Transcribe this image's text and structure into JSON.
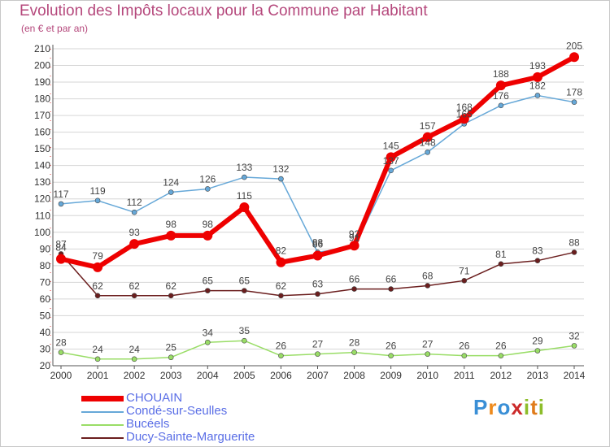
{
  "chart_data": {
    "type": "line",
    "title": "Evolution des Impôts locaux pour la Commune par Habitant",
    "subtitle": "(en € et par an)",
    "xlabel": "",
    "ylabel": "",
    "ylim": [
      20,
      210
    ],
    "y_ticks": [
      20,
      30,
      40,
      50,
      60,
      70,
      80,
      90,
      100,
      110,
      120,
      130,
      140,
      150,
      160,
      170,
      180,
      190,
      200,
      210
    ],
    "x": [
      "2000",
      "2001",
      "2002",
      "2003",
      "2004",
      "2005",
      "2006",
      "2007",
      "2008",
      "2009",
      "2010",
      "2011",
      "2012",
      "2013",
      "2014"
    ],
    "grid": "horizontal",
    "legend_position": "bottom-left",
    "series": [
      {
        "name": "Ducy-Sainte-Marguerite",
        "color": "#6b1e1e",
        "values": [
          87,
          62,
          62,
          62,
          65,
          65,
          62,
          63,
          66,
          66,
          68,
          71,
          81,
          83,
          88
        ]
      },
      {
        "name": "Bucéels",
        "color": "#99dd66",
        "values": [
          28,
          24,
          24,
          25,
          34,
          35,
          26,
          27,
          28,
          26,
          27,
          26,
          26,
          29,
          32
        ]
      },
      {
        "name": "Condé-sur-Seulles",
        "color": "#66a8d8",
        "values": [
          117,
          119,
          112,
          124,
          126,
          133,
          132,
          88,
          91,
          137,
          148,
          165,
          176,
          182,
          178
        ]
      },
      {
        "name": "CHOUAIN",
        "color": "#ee0000",
        "values": [
          84,
          79,
          93,
          98,
          98,
          115,
          82,
          86,
          92,
          145,
          157,
          168,
          188,
          193,
          205
        ]
      }
    ]
  },
  "legend": {
    "items": [
      "CHOUAIN",
      "Condé-sur-Seulles",
      "Bucéels",
      "Ducy-Sainte-Marguerite"
    ]
  },
  "logo": {
    "letters": [
      "P",
      "r",
      "o",
      "x",
      "i",
      "t",
      "i"
    ],
    "colors": [
      "#3a8fd6",
      "#ee8a1c",
      "#3a8fd6",
      "#cc2a2a",
      "#8dbd2a",
      "#e07b1a",
      "#8dbd2a"
    ]
  }
}
